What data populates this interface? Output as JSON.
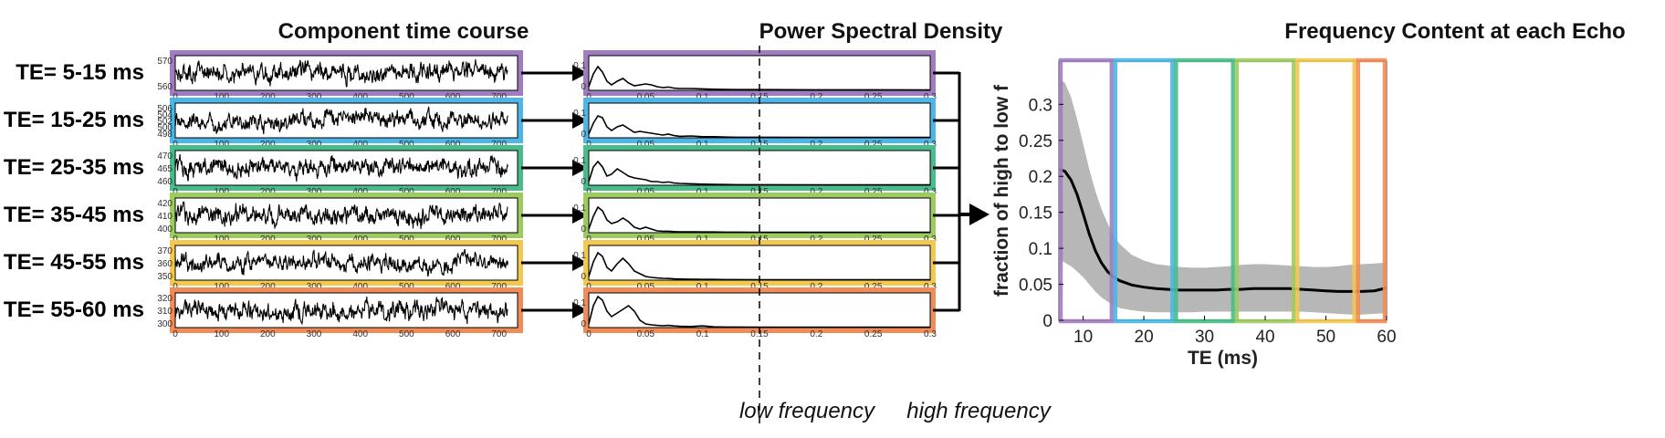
{
  "titles": {
    "time_course": "Component time course",
    "psd": "Power Spectral Density",
    "echo": "Frequency Content at each Echo"
  },
  "band_labels": {
    "low": "low frequency",
    "high": "high frequency"
  },
  "colors": {
    "echo": [
      "#a07cc0",
      "#4cb6e6",
      "#48bc8a",
      "#9ccc5e",
      "#f2c84e",
      "#f08c58"
    ],
    "signal": "#000000",
    "ci_band": "#b3b3b3",
    "divider": "#000000"
  },
  "chart_data": [
    {
      "type": "line",
      "panel": "time_course",
      "xlim": [
        0,
        740
      ],
      "x_ticks": [
        0,
        100,
        200,
        300,
        400,
        500,
        600,
        700
      ],
      "series": [
        {
          "label": "TE= 5-15 ms",
          "ylim": [
            555,
            575
          ],
          "y_ticks": [
            "570",
            "560"
          ]
        },
        {
          "label": "TE= 15-25 ms",
          "ylim": [
            495,
            508
          ],
          "y_ticks": [
            "506",
            "504",
            "502",
            "500",
            "498"
          ]
        },
        {
          "label": "TE= 25-35 ms",
          "ylim": [
            455,
            472
          ],
          "y_ticks": [
            "470",
            "465",
            "460"
          ]
        },
        {
          "label": "TE= 35-45 ms",
          "ylim": [
            398,
            422
          ],
          "y_ticks": [
            "420",
            "410",
            "400"
          ]
        },
        {
          "label": "TE= 45-55 ms",
          "ylim": [
            346,
            372
          ],
          "y_ticks": [
            "370",
            "360",
            "350"
          ]
        },
        {
          "label": "TE= 55-60 ms",
          "ylim": [
            298,
            322
          ],
          "y_ticks": [
            "320",
            "310",
            "300"
          ]
        }
      ]
    },
    {
      "type": "line",
      "panel": "psd",
      "xlim": [
        0,
        0.3
      ],
      "x_ticks": [
        "0",
        "0.05",
        "0.1",
        "0.15",
        "0.2",
        "0.25",
        "0.3"
      ],
      "y_ticks": [
        "0.1",
        "0"
      ],
      "split_at": 0.15,
      "x": [
        0,
        0.004,
        0.008,
        0.012,
        0.016,
        0.02,
        0.025,
        0.03,
        0.035,
        0.04,
        0.045,
        0.05,
        0.055,
        0.06,
        0.065,
        0.07,
        0.075,
        0.08,
        0.09,
        0.1,
        0.11,
        0.12,
        0.13,
        0.15,
        0.2,
        0.25,
        0.3
      ],
      "series": [
        {
          "values": [
            0.02,
            0.09,
            0.13,
            0.1,
            0.05,
            0.03,
            0.05,
            0.065,
            0.04,
            0.025,
            0.03,
            0.035,
            0.03,
            0.02,
            0.015,
            0.018,
            0.012,
            0.01,
            0.01,
            0.008,
            0.006,
            0.005,
            0.004,
            0.004,
            0.003,
            0.003,
            0.002
          ]
        },
        {
          "values": [
            0.02,
            0.08,
            0.12,
            0.11,
            0.06,
            0.04,
            0.06,
            0.07,
            0.05,
            0.03,
            0.035,
            0.03,
            0.025,
            0.02,
            0.015,
            0.02,
            0.012,
            0.008,
            0.01,
            0.006,
            0.006,
            0.004,
            0.003,
            0.003,
            0.002,
            0.002,
            0.002
          ]
        },
        {
          "values": [
            0.02,
            0.1,
            0.13,
            0.1,
            0.05,
            0.06,
            0.09,
            0.07,
            0.05,
            0.04,
            0.035,
            0.03,
            0.02,
            0.02,
            0.015,
            0.018,
            0.012,
            0.01,
            0.008,
            0.006,
            0.005,
            0.004,
            0.003,
            0.003,
            0.002,
            0.002,
            0.002
          ]
        },
        {
          "values": [
            0.02,
            0.09,
            0.14,
            0.12,
            0.07,
            0.05,
            0.06,
            0.08,
            0.06,
            0.03,
            0.02,
            0.03,
            0.02,
            0.01,
            0.008,
            0.008,
            0.006,
            0.005,
            0.005,
            0.004,
            0.004,
            0.003,
            0.003,
            0.002,
            0.002,
            0.002,
            0.002
          ]
        },
        {
          "values": [
            0.02,
            0.1,
            0.15,
            0.13,
            0.07,
            0.05,
            0.09,
            0.12,
            0.09,
            0.05,
            0.035,
            0.02,
            0.015,
            0.012,
            0.01,
            0.009,
            0.007,
            0.006,
            0.005,
            0.004,
            0.004,
            0.003,
            0.003,
            0.002,
            0.002,
            0.002,
            0.002
          ]
        },
        {
          "values": [
            0.02,
            0.12,
            0.17,
            0.15,
            0.09,
            0.06,
            0.08,
            0.1,
            0.12,
            0.09,
            0.04,
            0.02,
            0.015,
            0.012,
            0.01,
            0.012,
            0.009,
            0.007,
            0.006,
            0.01,
            0.004,
            0.003,
            0.003,
            0.002,
            0.002,
            0.002,
            0.002
          ]
        }
      ]
    },
    {
      "type": "line",
      "panel": "echo",
      "title": "Frequency Content at each Echo",
      "xlabel": "TE (ms)",
      "ylabel": "fraction of high to low f",
      "xlim": [
        6,
        60
      ],
      "ylim": [
        0,
        0.36
      ],
      "x_ticks": [
        10,
        20,
        30,
        40,
        50,
        60
      ],
      "y_ticks": [
        0,
        0.05,
        0.1,
        0.15,
        0.2,
        0.25,
        0.3
      ],
      "x": [
        6,
        7,
        8,
        9,
        10,
        11,
        12,
        13,
        14,
        15,
        16,
        18,
        20,
        22,
        24,
        26,
        28,
        30,
        32,
        34,
        36,
        38,
        40,
        42,
        44,
        46,
        48,
        50,
        52,
        54,
        56,
        58,
        60
      ],
      "mean": [
        0.21,
        0.207,
        0.195,
        0.175,
        0.148,
        0.12,
        0.097,
        0.08,
        0.068,
        0.06,
        0.055,
        0.049,
        0.046,
        0.044,
        0.043,
        0.042,
        0.042,
        0.042,
        0.042,
        0.043,
        0.043,
        0.044,
        0.044,
        0.044,
        0.044,
        0.043,
        0.042,
        0.041,
        0.04,
        0.04,
        0.04,
        0.041,
        0.045
      ],
      "upper": [
        0.335,
        0.33,
        0.31,
        0.28,
        0.245,
        0.21,
        0.18,
        0.155,
        0.135,
        0.118,
        0.106,
        0.091,
        0.083,
        0.078,
        0.076,
        0.074,
        0.073,
        0.073,
        0.074,
        0.075,
        0.077,
        0.078,
        0.078,
        0.077,
        0.076,
        0.075,
        0.074,
        0.074,
        0.075,
        0.077,
        0.078,
        0.079,
        0.08
      ],
      "lower": [
        0.085,
        0.08,
        0.075,
        0.068,
        0.06,
        0.05,
        0.04,
        0.032,
        0.026,
        0.021,
        0.017,
        0.014,
        0.012,
        0.011,
        0.011,
        0.011,
        0.011,
        0.012,
        0.012,
        0.012,
        0.012,
        0.012,
        0.012,
        0.012,
        0.012,
        0.012,
        0.011,
        0.01,
        0.009,
        0.008,
        0.008,
        0.009,
        0.01
      ],
      "echo_bands": [
        [
          6,
          15
        ],
        [
          15,
          25
        ],
        [
          25,
          35
        ],
        [
          35,
          45
        ],
        [
          45,
          55
        ],
        [
          55,
          60
        ]
      ]
    }
  ]
}
